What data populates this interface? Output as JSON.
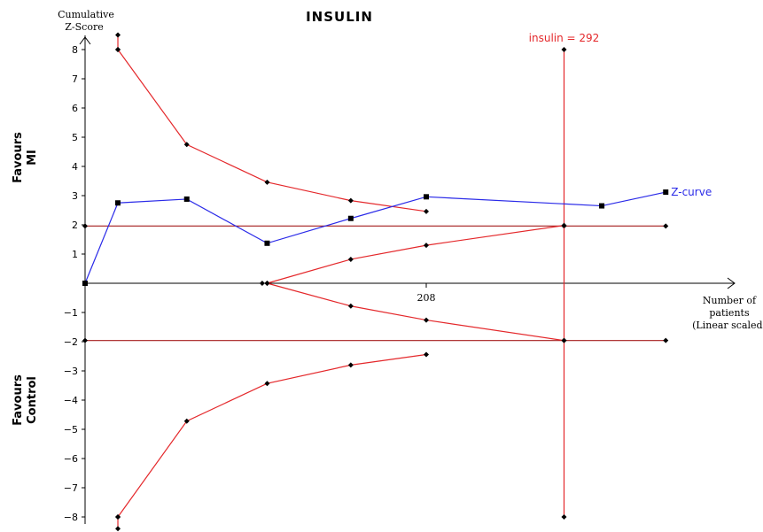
{
  "chart_data": {
    "type": "line",
    "title": "INSULIN",
    "ylabel_lines": [
      "Cumulative",
      "Z-Score"
    ],
    "xlabel_lines": [
      "Number of",
      "patients",
      "(Linear scaled)"
    ],
    "favours_top": [
      "Favours",
      "MI"
    ],
    "favours_bottom": [
      "Favours",
      "Control"
    ],
    "ylim": [
      -8,
      8
    ],
    "xlim": [
      0,
      380
    ],
    "y_ticks": [
      8,
      7,
      6,
      5,
      4,
      3,
      2,
      1,
      -1,
      -2,
      -3,
      -4,
      -5,
      -6,
      -7,
      -8
    ],
    "y_tick_labels": [
      "8",
      "7",
      "6",
      "5",
      "4",
      "3",
      "2",
      "1",
      "−1",
      "−2",
      "−3",
      "−4",
      "−5",
      "−6",
      "−7",
      "−8"
    ],
    "x_tick_value": 208,
    "x_tick_label": "208",
    "grid": false,
    "ris_label": "insulin = 292",
    "ris_x": 292,
    "series": [
      {
        "name": "Z-curve",
        "color": "#2a2ae8",
        "marker": "square",
        "points": [
          [
            0,
            0
          ],
          [
            20,
            2.75
          ],
          [
            62,
            2.88
          ],
          [
            111,
            1.37
          ],
          [
            162,
            2.22
          ],
          [
            208,
            2.96
          ],
          [
            315,
            2.65
          ],
          [
            354,
            3.12
          ]
        ]
      }
    ],
    "conventional_boundaries": {
      "color": "#a51b1b",
      "values": [
        1.96,
        -1.96
      ],
      "x_range": [
        0,
        354
      ]
    },
    "monitoring_boundaries": {
      "color": "#e4282b",
      "upper_top_stub": [
        [
          20,
          8.5
        ],
        [
          20,
          8.0
        ]
      ],
      "upper": [
        [
          20,
          8.0
        ],
        [
          62,
          4.75
        ],
        [
          111,
          3.46
        ],
        [
          162,
          2.83
        ],
        [
          208,
          2.46
        ]
      ],
      "lower": [
        [
          20,
          -8.0
        ],
        [
          62,
          -4.72
        ],
        [
          111,
          -3.43
        ],
        [
          162,
          -2.8
        ],
        [
          208,
          -2.44
        ]
      ],
      "lower_bottom_stub": [
        [
          20,
          -8.0
        ],
        [
          20,
          -8.4
        ]
      ]
    },
    "futility_boundaries": {
      "color": "#e4282b",
      "upper": [
        [
          111,
          0
        ],
        [
          162,
          0.82
        ],
        [
          208,
          1.3
        ],
        [
          292,
          1.98
        ]
      ],
      "lower": [
        [
          111,
          0
        ],
        [
          162,
          -0.78
        ],
        [
          208,
          -1.26
        ],
        [
          292,
          -1.96
        ]
      ]
    },
    "ris_line": {
      "color": "#e4282b",
      "x": 292,
      "y_range": [
        -8,
        8
      ]
    },
    "extra_points": [
      [
        108,
        0
      ]
    ]
  }
}
